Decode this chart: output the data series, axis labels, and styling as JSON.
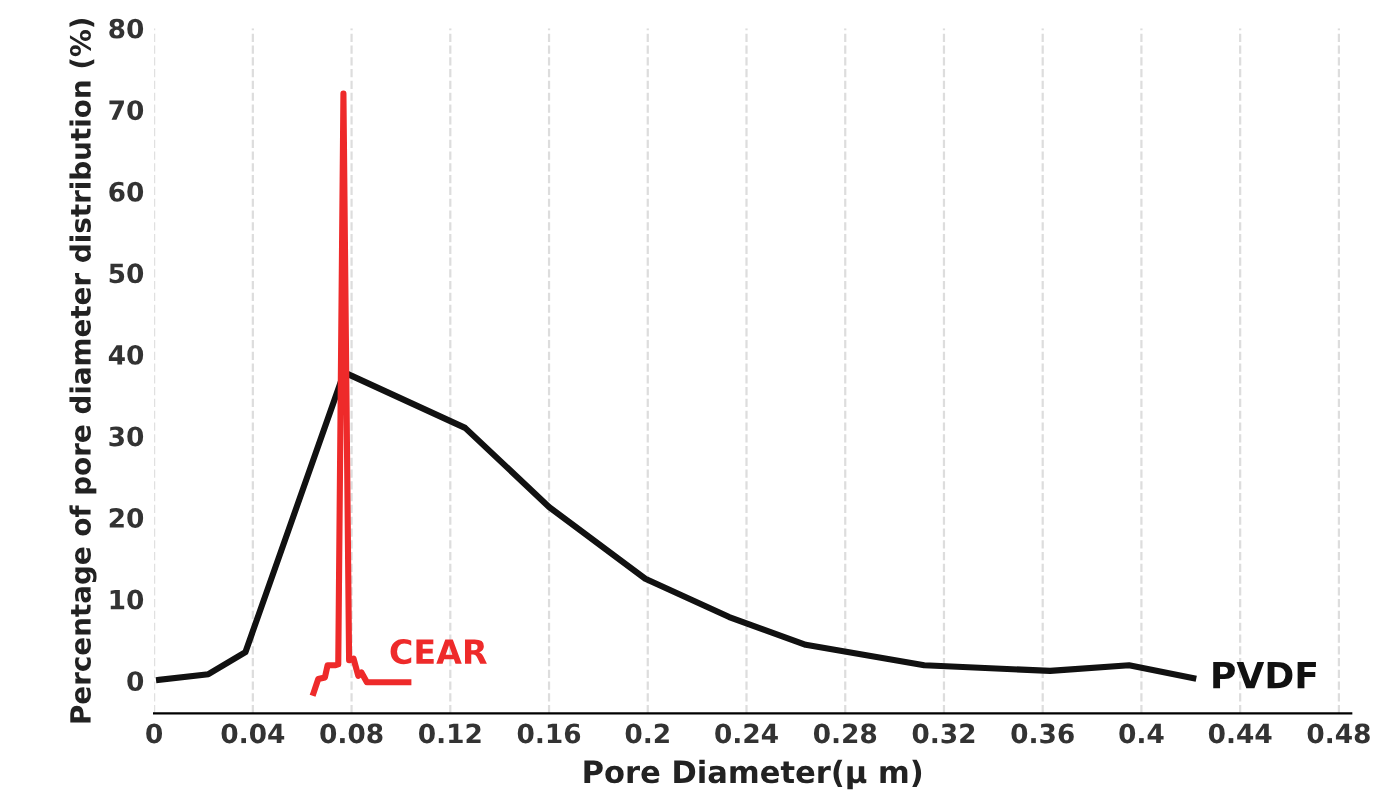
{
  "chart_data": {
    "type": "line",
    "xlabel": "Pore Diameter(μ m)",
    "ylabel": "Percentage of pore diameter distribution (%)",
    "xlim": [
      0,
      0.485
    ],
    "ylim": [
      -4,
      80
    ],
    "xticks": [
      0,
      0.04,
      0.08,
      0.12,
      0.16,
      0.2,
      0.24,
      0.28,
      0.32,
      0.36,
      0.4,
      0.44,
      0.48
    ],
    "yticks": [
      0,
      10,
      20,
      30,
      40,
      50,
      60,
      70,
      80
    ],
    "grid": "x",
    "legend": false,
    "marker": "none",
    "line_style": "solid",
    "series": [
      {
        "name": "PVDF",
        "color": "#111111",
        "x": [
          0.002,
          0.022,
          0.037,
          0.077,
          0.126,
          0.16,
          0.199,
          0.233,
          0.264,
          0.312,
          0.363,
          0.395,
          0.421
        ],
        "values": [
          0.1,
          0.8,
          3.5,
          37.8,
          31,
          21.3,
          12.5,
          7.8,
          4.4,
          1.9,
          1.2,
          1.9,
          0.3
        ]
      },
      {
        "name": "CEAR",
        "color": "#ee2a2a",
        "x": [
          0.0646,
          0.0665,
          0.0692,
          0.0703,
          0.0733,
          0.0746,
          0.0767,
          0.079,
          0.0808,
          0.0827,
          0.084,
          0.0862,
          0.103
        ],
        "values": [
          -1.5,
          0.2,
          0.4,
          1.9,
          1.9,
          2,
          72,
          2.5,
          2.7,
          0.6,
          1.0,
          -0.2,
          -0.2
        ]
      }
    ]
  }
}
